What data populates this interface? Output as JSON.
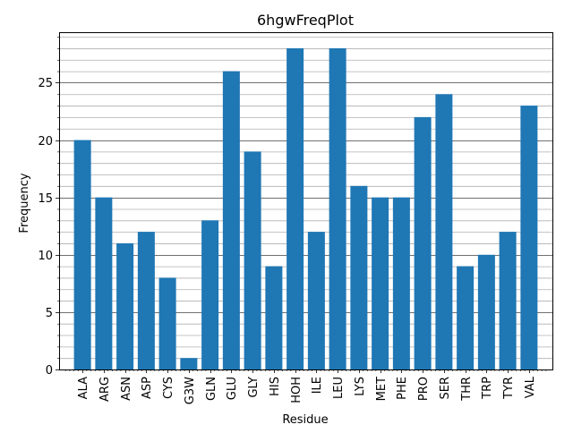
{
  "chart_data": {
    "type": "bar",
    "title": "6hgwFreqPlot",
    "xlabel": "Residue",
    "ylabel": "Frequency",
    "categories": [
      "ALA",
      "ARG",
      "ASN",
      "ASP",
      "CYS",
      "G3W",
      "GLN",
      "GLU",
      "GLY",
      "HIS",
      "HOH",
      "ILE",
      "LEU",
      "LYS",
      "MET",
      "PHE",
      "PRO",
      "SER",
      "THR",
      "TRP",
      "TYR",
      "VAL"
    ],
    "values": [
      20,
      15,
      11,
      12,
      8,
      1,
      13,
      26,
      19,
      9,
      28,
      12,
      28,
      16,
      15,
      15,
      22,
      24,
      9,
      10,
      12,
      23
    ],
    "ylim": [
      0,
      29.4
    ],
    "yticks": [
      0,
      5,
      10,
      15,
      20,
      25
    ],
    "ytick_labels": [
      "0",
      "5",
      "10",
      "15",
      "20",
      "25"
    ],
    "minor_tick_step": 1,
    "grid": "major and minor horizontal",
    "bar_color": "#1f77b4",
    "major_grid_color": "#404040",
    "minor_grid_color": "#b0b0b0"
  }
}
